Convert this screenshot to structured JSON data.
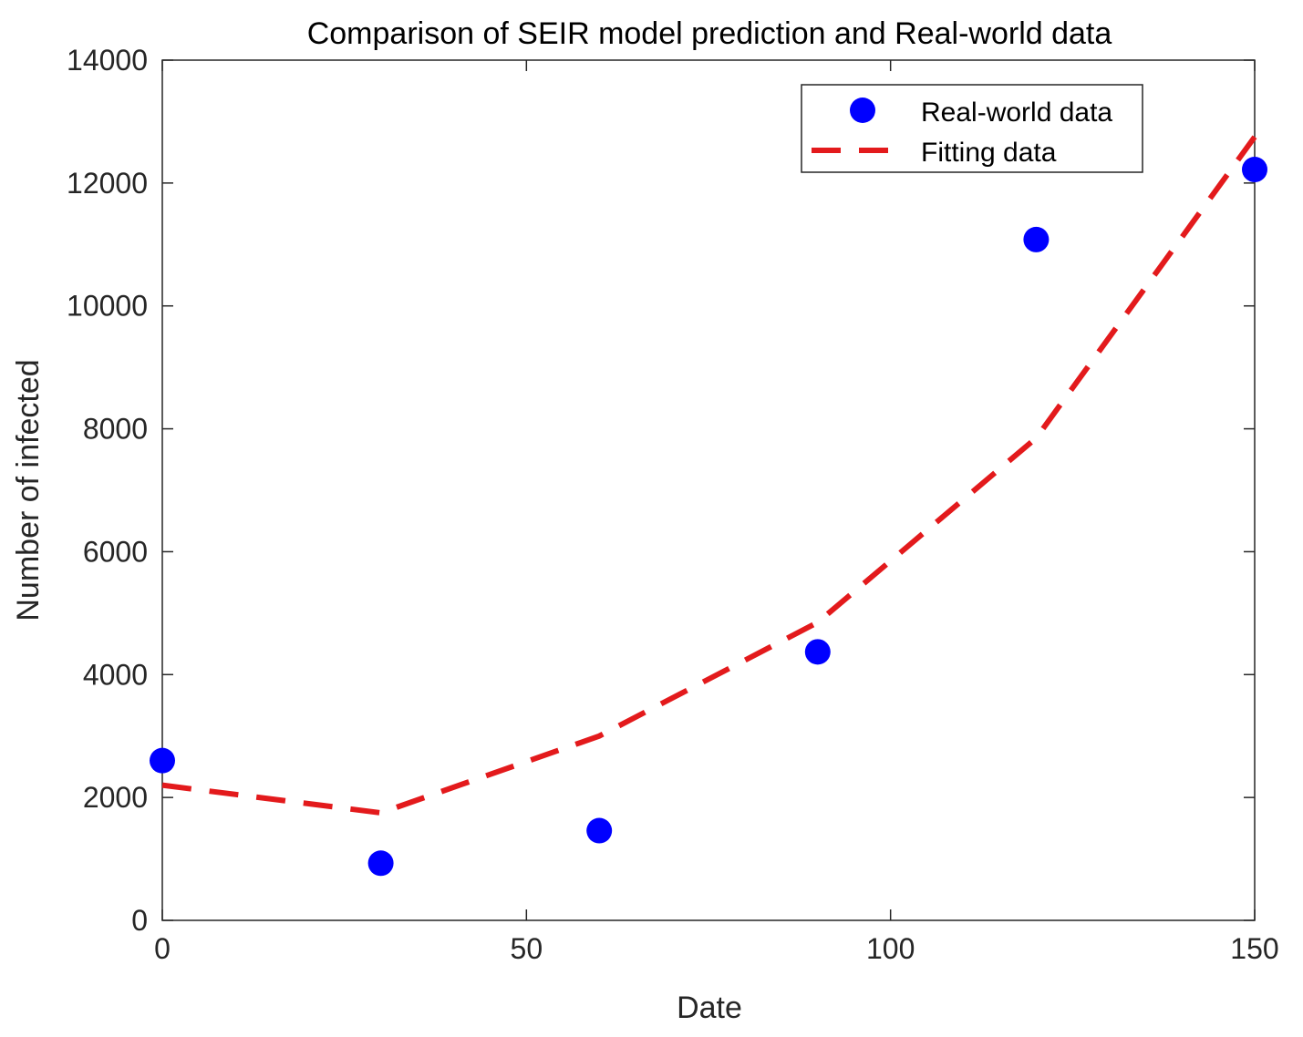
{
  "chart_data": {
    "type": "line",
    "title": "Comparison of SEIR model prediction and Real-world data",
    "xlabel": "Date",
    "ylabel": "Number of infected",
    "xlim": [
      0,
      150
    ],
    "ylim": [
      0,
      14000
    ],
    "xticks": [
      0,
      50,
      100,
      150
    ],
    "yticks": [
      0,
      2000,
      4000,
      6000,
      8000,
      10000,
      12000,
      14000
    ],
    "xtick_labels": [
      "0",
      "50",
      "100",
      "150"
    ],
    "ytick_labels": [
      "0",
      "2000",
      "4000",
      "6000",
      "8000",
      "10000",
      "12000",
      "14000"
    ],
    "grid": false,
    "legend_position": "top-right",
    "series": [
      {
        "name": "Real-world data",
        "style": "markers",
        "color": "#0000ff",
        "x": [
          0,
          30,
          60,
          90,
          120,
          150
        ],
        "y": [
          2600,
          930,
          1460,
          4370,
          11080,
          12220
        ]
      },
      {
        "name": "Fitting data",
        "style": "dashed-line",
        "color": "#e31a1c",
        "x": [
          0,
          30,
          60,
          90,
          120,
          150
        ],
        "y": [
          2200,
          1750,
          3000,
          4850,
          7850,
          12750
        ]
      }
    ]
  }
}
